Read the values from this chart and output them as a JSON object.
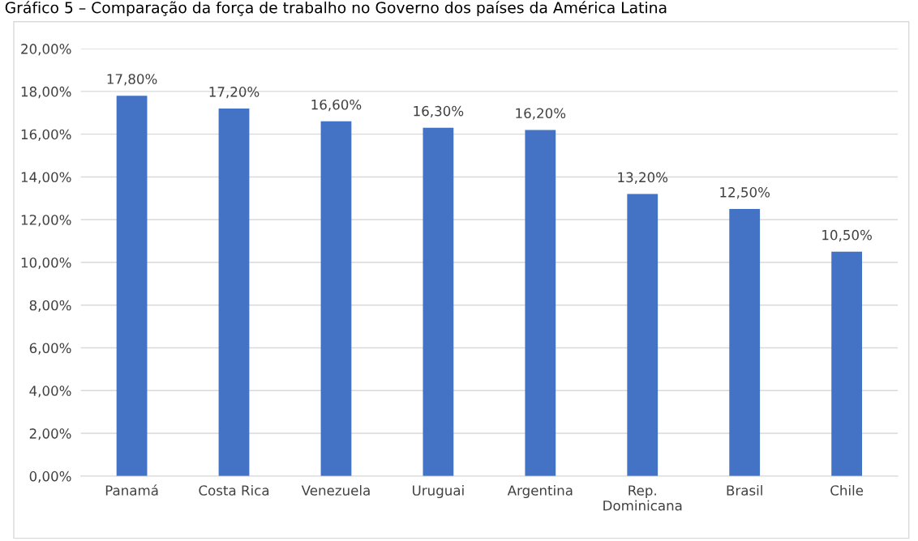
{
  "chart_data": {
    "type": "bar",
    "title": "Gráfico 5 – Comparação da força de trabalho no Governo dos países da América Latina",
    "categories": [
      "Panamá",
      "Costa Rica",
      "Venezuela",
      "Uruguai",
      "Argentina",
      "Rep.\nDominicana",
      "Brasil",
      "Chile"
    ],
    "values": [
      17.8,
      17.2,
      16.6,
      16.3,
      16.2,
      13.2,
      12.5,
      10.5
    ],
    "value_labels": [
      "17,80%",
      "17,20%",
      "16,60%",
      "16,30%",
      "16,20%",
      "13,20%",
      "12,50%",
      "10,50%"
    ],
    "color": "#4472c4",
    "ylim": [
      0,
      20
    ],
    "yticks": [
      {
        "value": 0,
        "label": "0,00%"
      },
      {
        "value": 2,
        "label": "2,00%"
      },
      {
        "value": 4,
        "label": "4,00%"
      },
      {
        "value": 6,
        "label": "6,00%"
      },
      {
        "value": 8,
        "label": "8,00%"
      },
      {
        "value": 10,
        "label": "10,00%"
      },
      {
        "value": 12,
        "label": "12,00%"
      },
      {
        "value": 14,
        "label": "14,00%"
      },
      {
        "value": 16,
        "label": "16,00%"
      },
      {
        "value": 18,
        "label": "18,00%"
      },
      {
        "value": 20,
        "label": "20,00%"
      }
    ],
    "grid": "y"
  }
}
